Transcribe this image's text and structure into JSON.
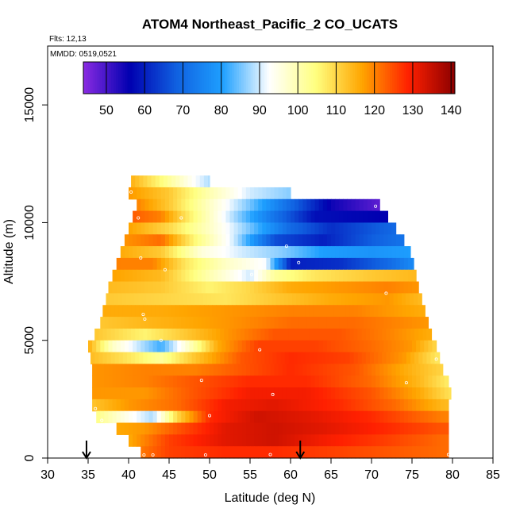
{
  "chart_data": {
    "type": "heatmap",
    "title": "ATOM4 Northeast_Pacific_2 CO_UCATS",
    "subtitle_flights": "Flts: 12,13",
    "subtitle_dates": "MMDD: 0519,0521",
    "xlabel": "Latitude (deg N)",
    "ylabel": "Altitude (m)",
    "xlim": [
      30,
      85
    ],
    "ylim": [
      0,
      17500
    ],
    "x_ticks": [
      "30",
      "35",
      "40",
      "45",
      "50",
      "55",
      "60",
      "65",
      "70",
      "75",
      "80",
      "85"
    ],
    "y_ticks": [
      "0",
      "5000",
      "10000",
      "15000"
    ],
    "colorbar": {
      "range": [
        44,
        141
      ],
      "ticks": [
        "50",
        "60",
        "70",
        "80",
        "90",
        "100",
        "110",
        "120",
        "130",
        "140"
      ],
      "colors": [
        "#8a2be2",
        "#0000b0",
        "#1060e0",
        "#1ea0ff",
        "#ffffff",
        "#ffff80",
        "#ffa500",
        "#ff2000",
        "#8b0000"
      ]
    },
    "profile_arrows_lat": [
      34.8,
      61.2
    ],
    "altitude_bands": [
      {
        "alt_min": 11500,
        "alt_max": 12000,
        "lat_min": 40.3,
        "lat_max": 50.0,
        "stops": [
          [
            40,
            116
          ],
          [
            44,
            105
          ],
          [
            48,
            93
          ],
          [
            50,
            88
          ]
        ]
      },
      {
        "alt_min": 11000,
        "alt_max": 11500,
        "lat_min": 40.0,
        "lat_max": 60.0,
        "stops": [
          [
            40,
            118
          ],
          [
            45,
            112
          ],
          [
            50,
            100
          ],
          [
            55,
            90
          ],
          [
            60,
            86
          ]
        ]
      },
      {
        "alt_min": 10500,
        "alt_max": 11000,
        "lat_min": 41.0,
        "lat_max": 71.0,
        "stops": [
          [
            41,
            120
          ],
          [
            45,
            112
          ],
          [
            50,
            98
          ],
          [
            55,
            85
          ],
          [
            60,
            70
          ],
          [
            65,
            55
          ],
          [
            71,
            48
          ]
        ]
      },
      {
        "alt_min": 10000,
        "alt_max": 10500,
        "lat_min": 40.5,
        "lat_max": 72.0,
        "stops": [
          [
            40,
            124
          ],
          [
            44,
            120
          ],
          [
            48,
            105
          ],
          [
            53,
            88
          ],
          [
            58,
            72
          ],
          [
            63,
            58
          ],
          [
            72,
            56
          ]
        ]
      },
      {
        "alt_min": 9500,
        "alt_max": 10000,
        "lat_min": 40.0,
        "lat_max": 73.0,
        "stops": [
          [
            40,
            117
          ],
          [
            45,
            110
          ],
          [
            50,
            98
          ],
          [
            55,
            85
          ],
          [
            60,
            70
          ],
          [
            65,
            62
          ],
          [
            73,
            70
          ]
        ]
      },
      {
        "alt_min": 9000,
        "alt_max": 9500,
        "lat_min": 39.5,
        "lat_max": 74.0,
        "stops": [
          [
            39,
            118
          ],
          [
            44,
            122
          ],
          [
            48,
            106
          ],
          [
            53,
            90
          ],
          [
            58,
            66
          ],
          [
            64,
            60
          ],
          [
            70,
            68
          ],
          [
            74,
            72
          ]
        ]
      },
      {
        "alt_min": 8500,
        "alt_max": 9000,
        "lat_min": 39.0,
        "lat_max": 74.8,
        "stops": [
          [
            39,
            116
          ],
          [
            44,
            112
          ],
          [
            49,
            96
          ],
          [
            54,
            90
          ],
          [
            59,
            86
          ],
          [
            64,
            80
          ],
          [
            70,
            78
          ],
          [
            75,
            80
          ]
        ]
      },
      {
        "alt_min": 8000,
        "alt_max": 8500,
        "lat_min": 38.5,
        "lat_max": 75.2,
        "stops": [
          [
            38,
            120
          ],
          [
            43,
            120
          ],
          [
            47,
            108
          ],
          [
            52,
            98
          ],
          [
            57,
            92
          ],
          [
            60,
            60
          ],
          [
            66,
            62
          ],
          [
            72,
            70
          ],
          [
            75,
            76
          ]
        ]
      },
      {
        "alt_min": 7500,
        "alt_max": 8000,
        "lat_min": 38.0,
        "lat_max": 75.5,
        "stops": [
          [
            38,
            117
          ],
          [
            44,
            114
          ],
          [
            50,
            100
          ],
          [
            55,
            90
          ],
          [
            58,
            102
          ],
          [
            63,
            108
          ],
          [
            70,
            112
          ],
          [
            75,
            114
          ]
        ]
      },
      {
        "alt_min": 7000,
        "alt_max": 7500,
        "lat_min": 37.5,
        "lat_max": 75.8,
        "stops": [
          [
            37,
            114
          ],
          [
            44,
            112
          ],
          [
            50,
            106
          ],
          [
            55,
            110
          ],
          [
            60,
            116
          ],
          [
            66,
            118
          ],
          [
            72,
            120
          ],
          [
            76,
            118
          ]
        ]
      },
      {
        "alt_min": 6500,
        "alt_max": 7000,
        "lat_min": 37.2,
        "lat_max": 76.2,
        "stops": [
          [
            37,
            112
          ],
          [
            45,
            110
          ],
          [
            52,
            108
          ],
          [
            58,
            112
          ],
          [
            65,
            116
          ],
          [
            72,
            118
          ],
          [
            76,
            114
          ]
        ]
      },
      {
        "alt_min": 6000,
        "alt_max": 6500,
        "lat_min": 36.8,
        "lat_max": 76.6,
        "stops": [
          [
            36,
            116
          ],
          [
            44,
            116
          ],
          [
            52,
            118
          ],
          [
            60,
            120
          ],
          [
            68,
            120
          ],
          [
            76,
            116
          ]
        ]
      },
      {
        "alt_min": 5500,
        "alt_max": 6000,
        "lat_min": 36.5,
        "lat_max": 77.0,
        "stops": [
          [
            36,
            112
          ],
          [
            44,
            115
          ],
          [
            52,
            118
          ],
          [
            60,
            122
          ],
          [
            68,
            122
          ],
          [
            77,
            118
          ]
        ]
      },
      {
        "alt_min": 5000,
        "alt_max": 5500,
        "lat_min": 35.8,
        "lat_max": 77.4,
        "stops": [
          [
            36,
            112
          ],
          [
            42,
            106
          ],
          [
            47,
            112
          ],
          [
            52,
            118
          ],
          [
            58,
            124
          ],
          [
            66,
            124
          ],
          [
            72,
            120
          ],
          [
            77,
            116
          ]
        ]
      },
      {
        "alt_min": 4500,
        "alt_max": 5000,
        "lat_min": 35.0,
        "lat_max": 78.0,
        "stops": [
          [
            35,
            116
          ],
          [
            38,
            98
          ],
          [
            41,
            90
          ],
          [
            44,
            82
          ],
          [
            47,
            96
          ],
          [
            51,
            116
          ],
          [
            56,
            126
          ],
          [
            63,
            126
          ],
          [
            70,
            122
          ],
          [
            75,
            118
          ],
          [
            78,
            110
          ]
        ]
      },
      {
        "alt_min": 4000,
        "alt_max": 4500,
        "lat_min": 35.3,
        "lat_max": 78.4,
        "stops": [
          [
            35,
            114
          ],
          [
            40,
            108
          ],
          [
            44,
            102
          ],
          [
            48,
            112
          ],
          [
            54,
            124
          ],
          [
            60,
            128
          ],
          [
            67,
            126
          ],
          [
            74,
            118
          ],
          [
            78,
            108
          ]
        ]
      },
      {
        "alt_min": 3500,
        "alt_max": 4000,
        "lat_min": 35.5,
        "lat_max": 78.8,
        "stops": [
          [
            35,
            118
          ],
          [
            42,
            120
          ],
          [
            48,
            120
          ],
          [
            54,
            124
          ],
          [
            60,
            128
          ],
          [
            68,
            124
          ],
          [
            74,
            116
          ],
          [
            79,
            110
          ]
        ]
      },
      {
        "alt_min": 3000,
        "alt_max": 3500,
        "lat_min": 35.5,
        "lat_max": 79.5,
        "stops": [
          [
            35,
            118
          ],
          [
            42,
            120
          ],
          [
            48,
            124
          ],
          [
            55,
            128
          ],
          [
            62,
            128
          ],
          [
            70,
            122
          ],
          [
            76,
            114
          ],
          [
            80,
            106
          ]
        ]
      },
      {
        "alt_min": 2500,
        "alt_max": 3000,
        "lat_min": 35.5,
        "lat_max": 79.8,
        "stops": [
          [
            35,
            118
          ],
          [
            42,
            118
          ],
          [
            48,
            124
          ],
          [
            55,
            130
          ],
          [
            62,
            130
          ],
          [
            70,
            124
          ],
          [
            76,
            116
          ],
          [
            80,
            108
          ]
        ]
      },
      {
        "alt_min": 2000,
        "alt_max": 2500,
        "lat_min": 35.5,
        "lat_max": 79.5,
        "stops": [
          [
            35,
            112
          ],
          [
            40,
            118
          ],
          [
            46,
            122
          ],
          [
            52,
            130
          ],
          [
            58,
            132
          ],
          [
            66,
            128
          ],
          [
            73,
            122
          ],
          [
            79,
            114
          ]
        ]
      },
      {
        "alt_min": 1500,
        "alt_max": 2000,
        "lat_min": 36.0,
        "lat_max": 79.5,
        "stops": [
          [
            36,
            104
          ],
          [
            40,
            94
          ],
          [
            43,
            88
          ],
          [
            46,
            110
          ],
          [
            50,
            128
          ],
          [
            56,
            134
          ],
          [
            62,
            132
          ],
          [
            70,
            128
          ],
          [
            79,
            120
          ]
        ]
      },
      {
        "alt_min": 1000,
        "alt_max": 1500,
        "lat_min": 38.5,
        "lat_max": 79.5,
        "stops": [
          [
            38,
            116
          ],
          [
            42,
            118
          ],
          [
            46,
            124
          ],
          [
            52,
            132
          ],
          [
            58,
            134
          ],
          [
            64,
            132
          ],
          [
            72,
            128
          ],
          [
            79,
            124
          ]
        ]
      },
      {
        "alt_min": 500,
        "alt_max": 1000,
        "lat_min": 40.0,
        "lat_max": 79.5,
        "stops": [
          [
            40,
            116
          ],
          [
            45,
            126
          ],
          [
            52,
            132
          ],
          [
            58,
            134
          ],
          [
            64,
            130
          ],
          [
            72,
            126
          ],
          [
            79,
            122
          ]
        ]
      },
      {
        "alt_min": 0,
        "alt_max": 500,
        "lat_min": 41.5,
        "lat_max": 79.5,
        "stops": [
          [
            41,
            120
          ],
          [
            45,
            126
          ],
          [
            52,
            128
          ],
          [
            58,
            128
          ],
          [
            65,
            126
          ],
          [
            72,
            124
          ],
          [
            79,
            122
          ]
        ]
      }
    ],
    "sample_points": [
      [
        39.9,
        12200
      ],
      [
        40.3,
        11300
      ],
      [
        41.2,
        10200
      ],
      [
        46.5,
        10200
      ],
      [
        41.5,
        8500
      ],
      [
        44.5,
        8000
      ],
      [
        55.2,
        7800
      ],
      [
        61.0,
        8300
      ],
      [
        59.5,
        9000
      ],
      [
        70.5,
        10700
      ],
      [
        71.8,
        7000
      ],
      [
        41.8,
        6100
      ],
      [
        42.0,
        5900
      ],
      [
        44.0,
        5000
      ],
      [
        56.2,
        4600
      ],
      [
        49.0,
        3300
      ],
      [
        57.8,
        2700
      ],
      [
        74.3,
        3200
      ],
      [
        78.0,
        4200
      ],
      [
        35.9,
        2100
      ],
      [
        36.7,
        1600
      ],
      [
        50.0,
        1800
      ],
      [
        41.9,
        130
      ],
      [
        43.0,
        130
      ],
      [
        49.5,
        130
      ],
      [
        57.5,
        150
      ],
      [
        79.5,
        150
      ]
    ]
  }
}
